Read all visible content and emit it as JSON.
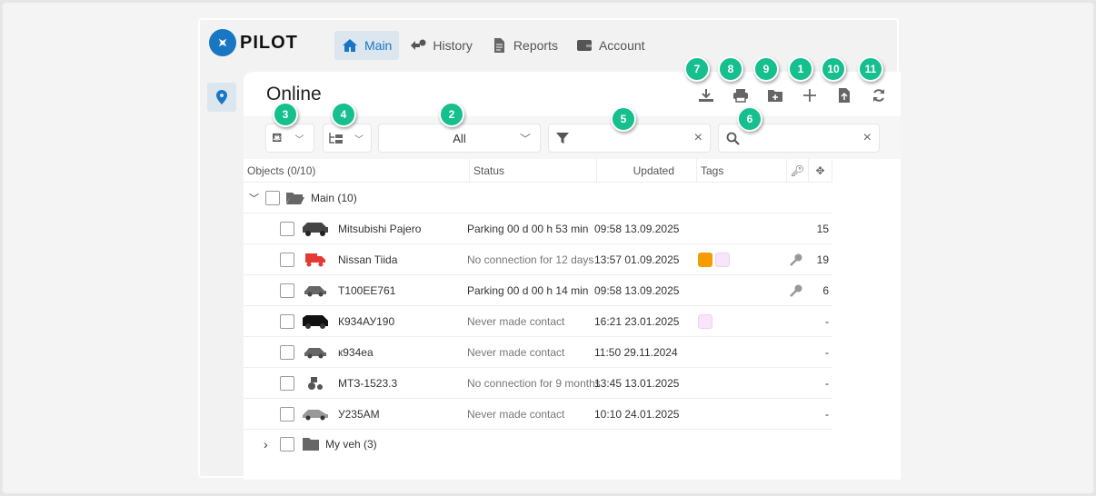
{
  "brand": {
    "name": "PILOT"
  },
  "nav": [
    {
      "label": "Main",
      "icon": "home-icon",
      "active": true
    },
    {
      "label": "History",
      "icon": "history-icon"
    },
    {
      "label": "Reports",
      "icon": "document-icon"
    },
    {
      "label": "Account",
      "icon": "wallet-icon"
    }
  ],
  "sidebar": {
    "items": [
      {
        "icon": "map-pin-icon",
        "active": true
      }
    ]
  },
  "panel": {
    "title": "Online"
  },
  "actions": [
    {
      "icon": "download-icon"
    },
    {
      "icon": "print-icon"
    },
    {
      "icon": "folder-add-icon"
    },
    {
      "icon": "plus-icon"
    },
    {
      "icon": "file-upload-icon"
    },
    {
      "icon": "refresh-icon"
    }
  ],
  "toolbar": {
    "paint_icon": "paint-bucket-icon",
    "tree_icon": "tree-view-icon",
    "status_filter": "All",
    "filter_value": "",
    "search_value": ""
  },
  "table": {
    "headers": {
      "objects": "Objects (0/10)",
      "status": "Status",
      "updated": "Updated",
      "tags": "Tags"
    },
    "groups": [
      {
        "name": "Main (10)",
        "expanded": true
      },
      {
        "name": "My veh (3)",
        "expanded": false
      }
    ],
    "rows": [
      {
        "name": "Mitsubishi Pajero",
        "status": "Parking 00 d 00 h 53 min",
        "status_grey": false,
        "updated": "09:58 13.09.2025",
        "tags": [],
        "key": false,
        "count": "15"
      },
      {
        "name": "Nissan Tiida",
        "status": "No connection for 12 days",
        "status_grey": true,
        "updated": "13:57 01.09.2025",
        "tags": [
          "#f59c00",
          "#f8e4fb"
        ],
        "key": true,
        "count": "19"
      },
      {
        "name": "T100EE761",
        "status": "Parking 00 d 00 h 14 min",
        "status_grey": false,
        "updated": "09:58 13.09.2025",
        "tags": [],
        "key": true,
        "count": "6"
      },
      {
        "name": "К934АУ190",
        "status": "Never made contact",
        "status_grey": true,
        "updated": "16:21 23.01.2025",
        "tags": [
          "#f8e4fb"
        ],
        "key": false,
        "count": "-"
      },
      {
        "name": "к934еа",
        "status": "Never made contact",
        "status_grey": true,
        "updated": "11:50 29.11.2024",
        "tags": [],
        "key": false,
        "count": "-"
      },
      {
        "name": "МТЗ-1523.3",
        "status": "No connection for 9 months",
        "status_grey": true,
        "updated": "13:45 13.01.2025",
        "tags": [],
        "key": false,
        "count": "-"
      },
      {
        "name": "У235АМ",
        "status": "Never made contact",
        "status_grey": true,
        "updated": "10:10 24.01.2025",
        "tags": [],
        "key": false,
        "count": "-"
      }
    ]
  },
  "badges": [
    "7",
    "8",
    "9",
    "1",
    "10",
    "11",
    "3",
    "4",
    "2",
    "5",
    "6"
  ],
  "colors": {
    "accent": "#1976c2",
    "badge": "#15bf8e"
  }
}
